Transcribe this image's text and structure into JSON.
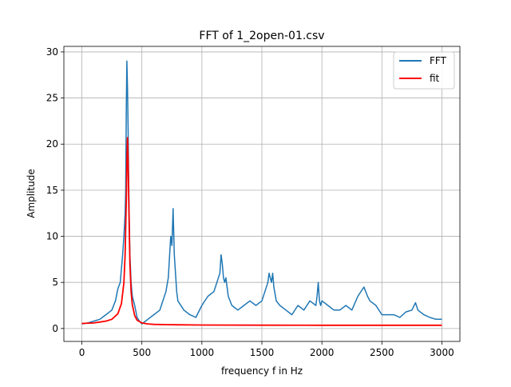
{
  "chart_data": {
    "type": "line",
    "title": "FFT of 1_2open-01.csv",
    "xlabel": "frequency f in Hz",
    "ylabel": "Amplitude",
    "xlim": [
      -150,
      3150
    ],
    "ylim": [
      -1.4,
      30.6
    ],
    "x_ticks": [
      0,
      500,
      1000,
      1500,
      2000,
      2500,
      3000
    ],
    "y_ticks": [
      0,
      5,
      10,
      15,
      20,
      25,
      30
    ],
    "grid": true,
    "legend_position": "upper right",
    "series": [
      {
        "name": "FFT",
        "color": "#1f77b4",
        "x": [
          0,
          50,
          100,
          150,
          200,
          250,
          280,
          300,
          320,
          340,
          350,
          360,
          365,
          370,
          375,
          380,
          385,
          390,
          395,
          400,
          410,
          420,
          440,
          460,
          480,
          500,
          550,
          600,
          650,
          700,
          720,
          740,
          750,
          760,
          770,
          780,
          790,
          800,
          850,
          900,
          950,
          1000,
          1050,
          1100,
          1150,
          1160,
          1170,
          1180,
          1190,
          1200,
          1210,
          1220,
          1250,
          1300,
          1350,
          1400,
          1450,
          1500,
          1550,
          1560,
          1570,
          1580,
          1590,
          1600,
          1620,
          1650,
          1700,
          1750,
          1800,
          1850,
          1900,
          1950,
          1960,
          1970,
          1980,
          1990,
          2000,
          2050,
          2100,
          2150,
          2200,
          2250,
          2300,
          2350,
          2380,
          2400,
          2450,
          2500,
          2550,
          2600,
          2650,
          2700,
          2750,
          2780,
          2800,
          2850,
          2900,
          2950,
          3000
        ],
        "y": [
          0.5,
          0.6,
          0.8,
          1.0,
          1.5,
          2.0,
          3.0,
          4.3,
          5.0,
          8.0,
          10.0,
          12.5,
          15.0,
          24.0,
          29.0,
          26.0,
          22.0,
          16.0,
          12.0,
          8.0,
          5.0,
          3.5,
          2.5,
          1.2,
          0.8,
          0.5,
          1.0,
          1.5,
          2.0,
          4.0,
          5.5,
          10.0,
          9.0,
          13.0,
          8.0,
          6.0,
          4.0,
          3.0,
          2.0,
          1.5,
          1.2,
          2.5,
          3.5,
          4.0,
          6.0,
          8.0,
          7.0,
          5.5,
          5.0,
          5.5,
          4.5,
          3.5,
          2.5,
          2.0,
          2.5,
          3.0,
          2.5,
          3.0,
          5.0,
          6.0,
          5.5,
          5.0,
          6.0,
          4.5,
          3.0,
          2.5,
          2.0,
          1.5,
          2.5,
          2.0,
          3.0,
          2.5,
          3.5,
          5.0,
          3.0,
          2.5,
          3.0,
          2.5,
          2.0,
          2.0,
          2.5,
          2.0,
          3.5,
          4.5,
          3.5,
          3.0,
          2.5,
          1.5,
          1.5,
          1.5,
          1.2,
          1.8,
          2.0,
          2.8,
          2.0,
          1.5,
          1.2,
          1.0,
          1.0
        ]
      },
      {
        "name": "fit",
        "color": "#ff0000",
        "x": [
          0,
          100,
          200,
          250,
          300,
          330,
          350,
          360,
          370,
          375,
          380,
          385,
          390,
          400,
          410,
          420,
          440,
          460,
          500,
          550,
          600,
          700,
          800,
          1000,
          1500,
          2000,
          2500,
          3000
        ],
        "y": [
          0.55,
          0.6,
          0.8,
          1.0,
          1.6,
          2.7,
          5.0,
          8.0,
          14.0,
          18.0,
          20.7,
          18.5,
          14.0,
          7.0,
          4.0,
          2.6,
          1.4,
          0.9,
          0.6,
          0.5,
          0.45,
          0.42,
          0.4,
          0.38,
          0.36,
          0.35,
          0.35,
          0.35
        ]
      }
    ]
  }
}
